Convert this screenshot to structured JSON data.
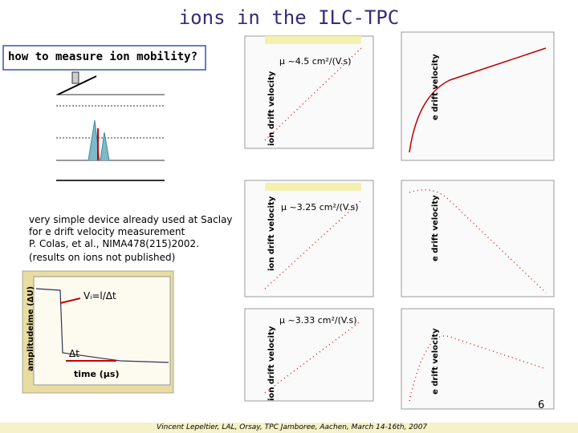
{
  "header": {
    "title": "ions in the ILC-TPC",
    "subtitle": "how to measure ion mobility?"
  },
  "description": [
    "very simple device already used at Saclay",
    "for e drift velocity measurement",
    "P. Colas, et al.,  NIMA478(215)2002.",
    "(results on ions not published)"
  ],
  "plots": [
    {
      "y_label": "ion drift velocity",
      "annotation": "μ ~4.5 cm²/(V.s)"
    },
    {
      "y_label": "ion drift velocity",
      "annotation": "μ ~3.25 cm²/(V.s)"
    },
    {
      "y_label": "ion drift velocity",
      "annotation": "μ ~3.33 cm²/(V.s)"
    },
    {
      "y_label": "e drift velocity"
    },
    {
      "y_label": "e drift velocity"
    },
    {
      "y_label": "e drift velocity"
    }
  ],
  "signal_plot": {
    "y_label": "amplitudeime (ΔU)",
    "formula": "Vᵢ=l/Δt",
    "interval": "Δt",
    "x_label": "time (μs)"
  },
  "footer": {
    "credit": "Vincent Lepeltier, LAL, Orsay, TPC Jamboree, Aachen, March 14-16th, 2007",
    "page": "6"
  }
}
